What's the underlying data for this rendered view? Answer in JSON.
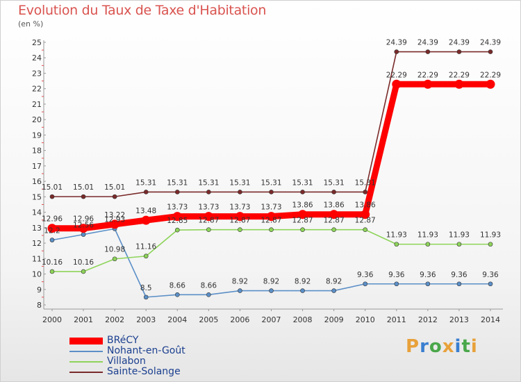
{
  "title": "Evolution du Taux de Taxe d'Habitation",
  "subtitle": "(en %)",
  "logo": {
    "letters": [
      "P",
      "r",
      "o",
      "x",
      "i",
      "t",
      "i"
    ],
    "colors": [
      "#e8a13a",
      "#3a7fd0",
      "#4aa74a",
      "#e8a13a",
      "#3a7fd0",
      "#4aa74a",
      "#e8a13a"
    ]
  },
  "chart_data": {
    "type": "line",
    "x": [
      "2000",
      "2001",
      "2002",
      "2003",
      "2004",
      "2005",
      "2006",
      "2007",
      "2008",
      "2009",
      "2010",
      "2011",
      "2012",
      "2013",
      "2014"
    ],
    "ylim": [
      8,
      25
    ],
    "yticks": [
      8,
      9,
      10,
      11,
      12,
      13,
      14,
      15,
      16,
      17,
      18,
      19,
      20,
      21,
      22,
      23,
      24,
      25
    ],
    "grid": false,
    "legend_position": "bottom-left",
    "series": [
      {
        "name": "BRéCY",
        "color": "#ff0000",
        "values": [
          12.96,
          12.96,
          13.22,
          13.48,
          13.73,
          13.73,
          13.73,
          13.73,
          13.86,
          13.86,
          13.86,
          22.29,
          22.29,
          22.29,
          22.29
        ],
        "labels": [
          "12.96",
          "12.96",
          "13.22",
          "13.48",
          "13.73",
          "13.73",
          "13.73",
          "13.73",
          "13.86",
          "13.86",
          "13.86",
          "22.29",
          "22.29",
          "22.29",
          "22.29"
        ]
      },
      {
        "name": "Nohant-en-Goût",
        "color": "#5b8fc7",
        "values": [
          12.2,
          12.56,
          12.93,
          8.5,
          8.66,
          8.66,
          8.92,
          8.92,
          8.92,
          8.92,
          9.36,
          9.36,
          9.36,
          9.36,
          9.36
        ],
        "labels": [
          "12.2",
          "12.56",
          "12.93",
          "8.5",
          "8.66",
          "8.66",
          "8.92",
          "8.92",
          "8.92",
          "8.92",
          "9.36",
          "9.36",
          "9.36",
          "9.36",
          "9.36"
        ]
      },
      {
        "name": "Villabon",
        "color": "#8ed45a",
        "values": [
          10.16,
          10.16,
          10.98,
          11.16,
          12.85,
          12.87,
          12.87,
          12.87,
          12.87,
          12.87,
          12.87,
          11.93,
          11.93,
          11.93,
          11.93
        ],
        "labels": [
          "10.16",
          "10.16",
          "10.98",
          "11.16",
          "12.85",
          "12.87",
          "12.87",
          "12.87",
          "12.87",
          "12.87",
          "12.87",
          "11.93",
          "11.93",
          "11.93",
          "11.93"
        ]
      },
      {
        "name": "Sainte-Solange",
        "color": "#7a2a2a",
        "values": [
          15.01,
          15.01,
          15.01,
          15.31,
          15.31,
          15.31,
          15.31,
          15.31,
          15.31,
          15.31,
          15.31,
          24.39,
          24.39,
          24.39,
          24.39
        ],
        "labels": [
          "15.01",
          "15.01",
          "15.01",
          "15.31",
          "15.31",
          "15.31",
          "15.31",
          "15.31",
          "15.31",
          "15.31",
          "15.31",
          "24.39",
          "24.39",
          "24.39",
          "24.39"
        ]
      }
    ]
  }
}
